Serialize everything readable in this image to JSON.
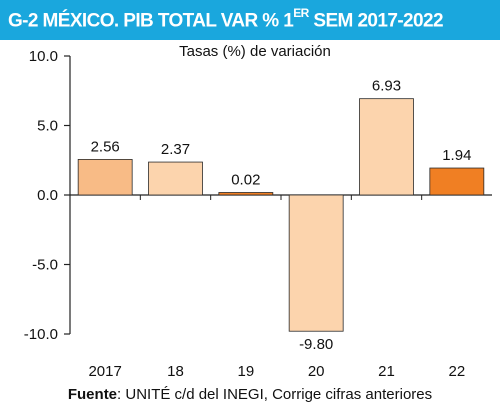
{
  "title": {
    "main": "G-2  MÉXICO. PIB TOTAL VAR % 1",
    "superscript": "ER",
    "rest": " SEM 2017-2022"
  },
  "source": {
    "label": "Fuente",
    "text": ": UNITÉ c/d del INEGI, Corrige cifras anteriores"
  },
  "colors": {
    "header": "#1aa7dd",
    "bar_light": "#fcd4ad",
    "bar_medium": "#f8bb86",
    "bar_highlight": "#f07f23",
    "bar_stroke": "#2a2a2a"
  },
  "chart_data": {
    "type": "bar",
    "subtitle": "Tasas (%) de variación",
    "categories": [
      "2017",
      "18",
      "19",
      "20",
      "21",
      "22"
    ],
    "values": [
      2.56,
      2.37,
      0.02,
      -9.8,
      6.93,
      1.94
    ],
    "value_labels": [
      "2.56",
      "2.37",
      "0.02",
      "-9.80",
      "6.93",
      "1.94"
    ],
    "bar_colors": [
      "#f8bb86",
      "#fcd4ad",
      "#f07f23",
      "#fcd4ad",
      "#fcd4ad",
      "#f07f23"
    ],
    "ylim": [
      -10,
      10
    ],
    "yticks": [
      10,
      5,
      0,
      -5,
      -10
    ],
    "ytick_labels": [
      "10.0",
      "5.0",
      "0.0",
      "-5.0",
      "-10.0"
    ],
    "grid": false,
    "legend": "none"
  }
}
